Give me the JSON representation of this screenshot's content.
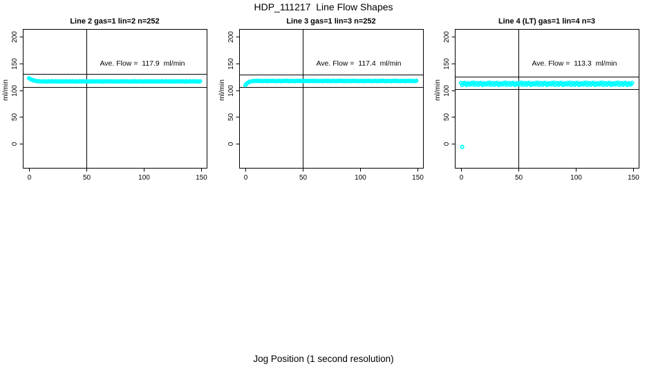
{
  "figure": {
    "title": "HDP_111217  Line Flow Shapes",
    "xlabel": "Jog Position (1 second resolution)",
    "ylabel": "ml/min"
  },
  "chart_data": {
    "type": "scatter",
    "layout": "3 panels in one row, shared axis style, legend none, grid off",
    "title": "HDP_111217  Line Flow Shapes",
    "xlabel": "Jog Position (1 second resolution)",
    "ylabel": "ml/min",
    "x_ticks": [
      0,
      50,
      100,
      150
    ],
    "y_ticks": [
      0,
      50,
      100,
      150,
      200
    ],
    "xlim": [
      -6,
      156
    ],
    "ylim": [
      -45,
      215
    ],
    "point_color": "#00FFFF",
    "axis_color": "#000000",
    "vline_x": 50,
    "panels": [
      {
        "title": "Line 2 gas=1 lin=2 n=252",
        "annotation": "Ave. Flow =  117.9  ml/min",
        "ave_flow_ml_min": 117.9,
        "n": 252,
        "ref_lines_y": [
          129.7,
          106.1
        ],
        "x_start": 0,
        "x_step": 1,
        "y": [
          122.3,
          120.9,
          119.8,
          118.9,
          118.2,
          117.6,
          117.2,
          116.9,
          116.7,
          116.5,
          116.4,
          116.3,
          116.5,
          116.0,
          116.7,
          116.2,
          115.8,
          116.6,
          116.3,
          115.9,
          116.8,
          116.4,
          116.1,
          116.6,
          116.5,
          116.0,
          116.7,
          116.2,
          115.8,
          116.6,
          116.3,
          115.9,
          116.8,
          116.4,
          116.1,
          116.6,
          116.5,
          116.0,
          116.7,
          116.2,
          115.8,
          116.6,
          116.3,
          115.9,
          116.8,
          116.4,
          116.1,
          116.6,
          116.5,
          116.0,
          116.7,
          116.2,
          115.8,
          116.6,
          116.3,
          115.9,
          116.8,
          116.4,
          116.1,
          116.6,
          116.5,
          116.0,
          116.7,
          116.2,
          115.8,
          116.6,
          116.3,
          115.9,
          116.8,
          116.4,
          116.1,
          116.6,
          116.5,
          116.0,
          116.7,
          116.2,
          115.8,
          116.6,
          116.3,
          115.9,
          116.8,
          116.4,
          116.1,
          116.6,
          116.5,
          116.0,
          116.7,
          116.2,
          115.8,
          116.6,
          116.3,
          115.9,
          116.8,
          116.4,
          116.1,
          116.6,
          116.5,
          116.0,
          116.7,
          116.2,
          115.8,
          116.6,
          116.3,
          115.9,
          116.8,
          116.4,
          116.1,
          116.6,
          116.5,
          116.0,
          116.7,
          116.2,
          115.8,
          116.6,
          116.3,
          115.9,
          116.8,
          116.4,
          116.1,
          116.6,
          116.5,
          116.0,
          116.7,
          116.2,
          115.8,
          116.6,
          116.3,
          115.9,
          116.8,
          116.4,
          116.1,
          116.6,
          116.5,
          116.0,
          116.7,
          116.2,
          115.8,
          116.6,
          116.3,
          115.9,
          116.8,
          116.4,
          116.1,
          116.6,
          116.5,
          116.0,
          116.7,
          116.2,
          115.8,
          116.6
        ],
        "outliers": []
      },
      {
        "title": "Line 3 gas=1 lin=3 n=252",
        "annotation": "Ave. Flow =  117.4  ml/min",
        "ave_flow_ml_min": 117.4,
        "n": 252,
        "ref_lines_y": [
          129.1,
          105.7
        ],
        "x_start": 0,
        "x_step": 1,
        "y": [
          109.3,
          111.8,
          113.6,
          114.9,
          115.8,
          116.4,
          116.8,
          117.0,
          117.1,
          117.2,
          117.4,
          116.9,
          117.6,
          117.1,
          116.7,
          117.3,
          116.8,
          117.5,
          117.2,
          116.6,
          117.4,
          117.0,
          117.4,
          116.9,
          117.6,
          117.1,
          116.7,
          117.3,
          116.8,
          117.5,
          117.2,
          116.6,
          117.4,
          117.0,
          117.4,
          116.9,
          117.6,
          117.1,
          116.7,
          117.3,
          116.8,
          117.5,
          117.2,
          116.6,
          117.4,
          117.0,
          117.4,
          116.9,
          117.6,
          117.1,
          116.7,
          117.3,
          116.8,
          117.5,
          117.2,
          116.6,
          117.4,
          117.0,
          117.4,
          116.9,
          117.6,
          117.1,
          116.7,
          117.3,
          116.8,
          117.5,
          117.2,
          116.6,
          117.4,
          117.0,
          117.4,
          116.9,
          117.6,
          117.1,
          116.7,
          117.3,
          116.8,
          117.5,
          117.2,
          116.6,
          117.4,
          117.0,
          117.4,
          116.9,
          117.6,
          117.1,
          116.7,
          117.3,
          116.8,
          117.5,
          117.2,
          116.6,
          117.4,
          117.0,
          117.4,
          116.9,
          117.6,
          117.1,
          116.7,
          117.3,
          116.8,
          117.5,
          117.2,
          116.6,
          117.4,
          117.0,
          117.4,
          116.9,
          117.6,
          117.1,
          116.7,
          117.3,
          116.8,
          117.5,
          117.2,
          116.6,
          117.4,
          117.0,
          117.4,
          116.9,
          117.6,
          117.1,
          116.7,
          117.3,
          116.8,
          117.5,
          117.2,
          116.6,
          117.4,
          117.0,
          117.4,
          116.9,
          117.6,
          117.1,
          116.7,
          117.3,
          116.8,
          117.5,
          117.2,
          116.6,
          117.4,
          117.0,
          117.4,
          116.9,
          117.6,
          117.1,
          116.7,
          117.3,
          116.8,
          117.5
        ],
        "outliers": []
      },
      {
        "title": "Line 4 (LT) gas=1 lin=4 n=3",
        "annotation": "Ave. Flow =  113.3  ml/min",
        "ave_flow_ml_min": 113.3,
        "n": 3,
        "ref_lines_y": [
          124.6,
          102.0
        ],
        "x_start": 0,
        "x_step": 1,
        "y": [
          113.3,
          110.0,
          112.4,
          113.8,
          110.9,
          109.7,
          112.9,
          112.0,
          110.4,
          113.6,
          111.2,
          114.0,
          109.9,
          112.6,
          113.3,
          110.0,
          112.4,
          113.8,
          110.9,
          109.7,
          112.9,
          112.0,
          110.4,
          113.6,
          111.2,
          114.0,
          109.9,
          112.6,
          113.3,
          110.0,
          112.4,
          113.8,
          110.9,
          109.7,
          112.9,
          112.0,
          110.4,
          113.6,
          111.2,
          114.0,
          109.9,
          112.6,
          113.3,
          110.0,
          112.4,
          113.8,
          110.9,
          109.7,
          112.9,
          112.0,
          110.4,
          113.6,
          111.2,
          114.0,
          109.9,
          112.6,
          113.3,
          110.0,
          112.4,
          113.8,
          110.9,
          109.7,
          112.9,
          112.0,
          110.4,
          113.6,
          111.2,
          114.0,
          109.9,
          112.6,
          113.3,
          110.0,
          112.4,
          113.8,
          110.9,
          109.7,
          112.9,
          112.0,
          110.4,
          113.6,
          111.2,
          114.0,
          109.9,
          112.6,
          113.3,
          110.0,
          112.4,
          113.8,
          110.9,
          109.7,
          112.9,
          112.0,
          110.4,
          113.6,
          111.2,
          114.0,
          109.9,
          112.6,
          113.3,
          110.0,
          112.4,
          113.8,
          110.9,
          109.7,
          112.9,
          112.0,
          110.4,
          113.6,
          111.2,
          114.0,
          109.9,
          112.6,
          113.3,
          110.0,
          112.4,
          113.8,
          110.9,
          109.7,
          112.9,
          112.0,
          110.4,
          113.6,
          111.2,
          114.0,
          109.9,
          112.6,
          113.3,
          110.0,
          112.4,
          113.8,
          110.9,
          109.7,
          112.9,
          112.0,
          110.4,
          113.6,
          111.2,
          114.0,
          109.9,
          112.6,
          113.3,
          110.0,
          112.4,
          113.8,
          110.9,
          109.7,
          112.9,
          112.0,
          110.4,
          113.6
        ],
        "outliers": [
          [
            1,
            -6
          ]
        ]
      }
    ]
  }
}
